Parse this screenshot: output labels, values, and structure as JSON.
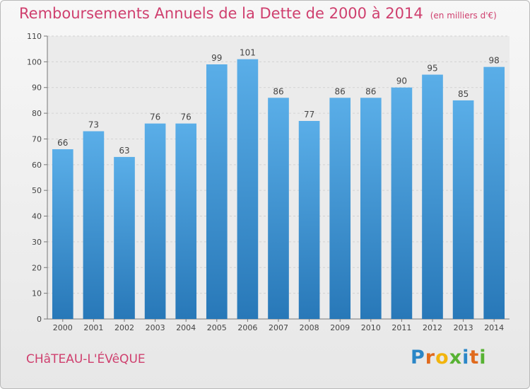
{
  "title": "Remboursements Annuels de la Dette de 2000 à 2014",
  "title_unit": "(en milliers d'€)",
  "city": "CHâTEAU-L'ÉVêQUE",
  "logo": {
    "letters": [
      "P",
      "r",
      "o",
      "x",
      "i",
      "t",
      "i"
    ],
    "colors": [
      "#2a86c7",
      "#e06a1d",
      "#f2b40d",
      "#57b233",
      "#2a86c7",
      "#e06a1d",
      "#57b233"
    ]
  },
  "colors": {
    "bar": "#4a9fdd",
    "title": "#cf3f6e"
  },
  "chart_data": {
    "type": "bar",
    "title": "Remboursements Annuels de la Dette de 2000 à 2014",
    "categories": [
      "2000",
      "2001",
      "2002",
      "2003",
      "2004",
      "2005",
      "2006",
      "2007",
      "2008",
      "2009",
      "2010",
      "2011",
      "2012",
      "2013",
      "2014"
    ],
    "values": [
      66,
      73,
      63,
      76,
      76,
      99,
      101,
      86,
      77,
      86,
      86,
      90,
      95,
      85,
      98
    ],
    "ylim": [
      0,
      110
    ],
    "yticks": [
      0,
      10,
      20,
      30,
      40,
      50,
      60,
      70,
      80,
      90,
      100,
      110
    ],
    "grid": true,
    "xlabel": "",
    "ylabel": ""
  }
}
